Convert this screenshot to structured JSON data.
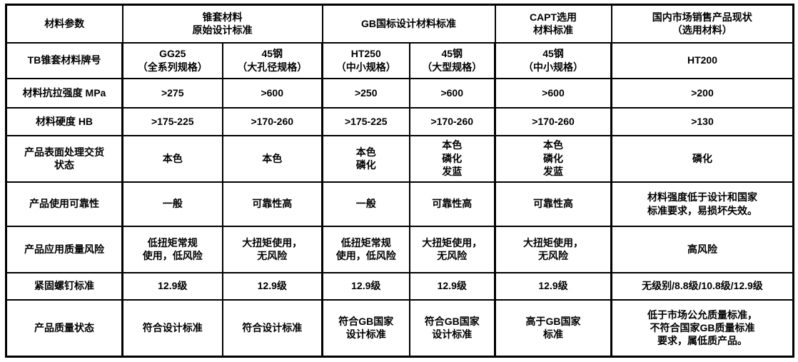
{
  "colors": {
    "text": "#000000",
    "highlight_red": "#e6342c",
    "border": "#000000",
    "background": "#ffffff"
  },
  "table": {
    "header": {
      "param": "材料参数",
      "original_standard": "锥套材料\n原始设计标准",
      "gb_standard": "GB国标设计材料标准",
      "capt_standard": "CAPT选用\n材料标准",
      "market_status": "国内市场销售产品现状\n（选用材料）"
    },
    "rows": [
      {
        "label": "TB锥套材料牌号",
        "cells": [
          {
            "text": "GG25\n（全系列规格）",
            "red": false
          },
          {
            "text": "45钢\n（大孔径规格）",
            "red": false
          },
          {
            "text": "HT250\n（中小规格）",
            "red": false
          },
          {
            "text": "45钢\n（大型规格）",
            "red": false
          },
          {
            "text": "45钢\n（中小规格）",
            "red": false
          },
          {
            "text": "HT200",
            "red": true
          }
        ]
      },
      {
        "label": "材料抗拉强度 MPa",
        "cells": [
          {
            "text": ">275",
            "red": false
          },
          {
            "text": ">600",
            "red": false
          },
          {
            "text": ">250",
            "red": false
          },
          {
            "text": ">600",
            "red": false
          },
          {
            "text": ">600",
            "red": false
          },
          {
            "text": ">200",
            "red": true
          }
        ]
      },
      {
        "label": "材料硬度 HB",
        "cells": [
          {
            "text": ">175-225",
            "red": false
          },
          {
            "text": ">170-260",
            "red": false
          },
          {
            "text": ">175-225",
            "red": false
          },
          {
            "text": ">170-260",
            "red": false
          },
          {
            "text": ">170-260",
            "red": false
          },
          {
            "text": ">130",
            "red": true
          }
        ]
      },
      {
        "label": "产品表面处理交货\n状态",
        "cells": [
          {
            "text": "本色",
            "red": false
          },
          {
            "text": "本色",
            "red": false
          },
          {
            "text": "本色\n磷化",
            "red": false
          },
          {
            "text": "本色\n磷化\n发蓝",
            "red": false
          },
          {
            "text": "本色\n磷化\n发蓝",
            "red": false
          },
          {
            "text": "磷化",
            "red": false
          }
        ]
      },
      {
        "label": "产品使用可靠性",
        "cells": [
          {
            "text": "一般",
            "red": false
          },
          {
            "text": "可靠性高",
            "red": false
          },
          {
            "text": "一般",
            "red": false
          },
          {
            "text": "可靠性高",
            "red": false
          },
          {
            "text": "可靠性高",
            "red": false
          },
          {
            "text": "材料强度低于设计和国家\n标准要求，易损坏失效。",
            "red": true
          }
        ]
      },
      {
        "label": "产品应用质量风险",
        "cells": [
          {
            "text": "低扭矩常规\n使用，低风险",
            "red": false
          },
          {
            "text": "大扭矩使用，\n无风险",
            "red": false
          },
          {
            "text": "低扭矩常规\n使用，低风险",
            "red": false
          },
          {
            "text": "大扭矩使用，\n无风险",
            "red": false
          },
          {
            "text": "大扭矩使用，\n无风险",
            "red": false
          },
          {
            "text": "高风险",
            "red": true
          }
        ]
      },
      {
        "label": "紧固螺钉标准",
        "cells": [
          {
            "text": "12.9级",
            "red": false
          },
          {
            "text": "12.9级",
            "red": false
          },
          {
            "text": "12.9级",
            "red": false
          },
          {
            "text": "12.9级",
            "red": false
          },
          {
            "text": "12.9级",
            "red": false
          },
          {
            "text": "无级别/8.8级/10.8级/12.9级",
            "red": true
          }
        ]
      },
      {
        "label": "产品质量状态",
        "cells": [
          {
            "text": "符合设计标准",
            "red": false
          },
          {
            "text": "符合设计标准",
            "red": false
          },
          {
            "text": "符合GB国家\n设计标准",
            "red": false
          },
          {
            "text": "符合GB国家\n设计标准",
            "red": false
          },
          {
            "text": "高于GB国家\n标准",
            "red": false
          },
          {
            "text": "低于市场公允质量标准，\n不符合国家GB质量标准\n要求，属低质产品。",
            "red": true
          }
        ]
      }
    ]
  }
}
